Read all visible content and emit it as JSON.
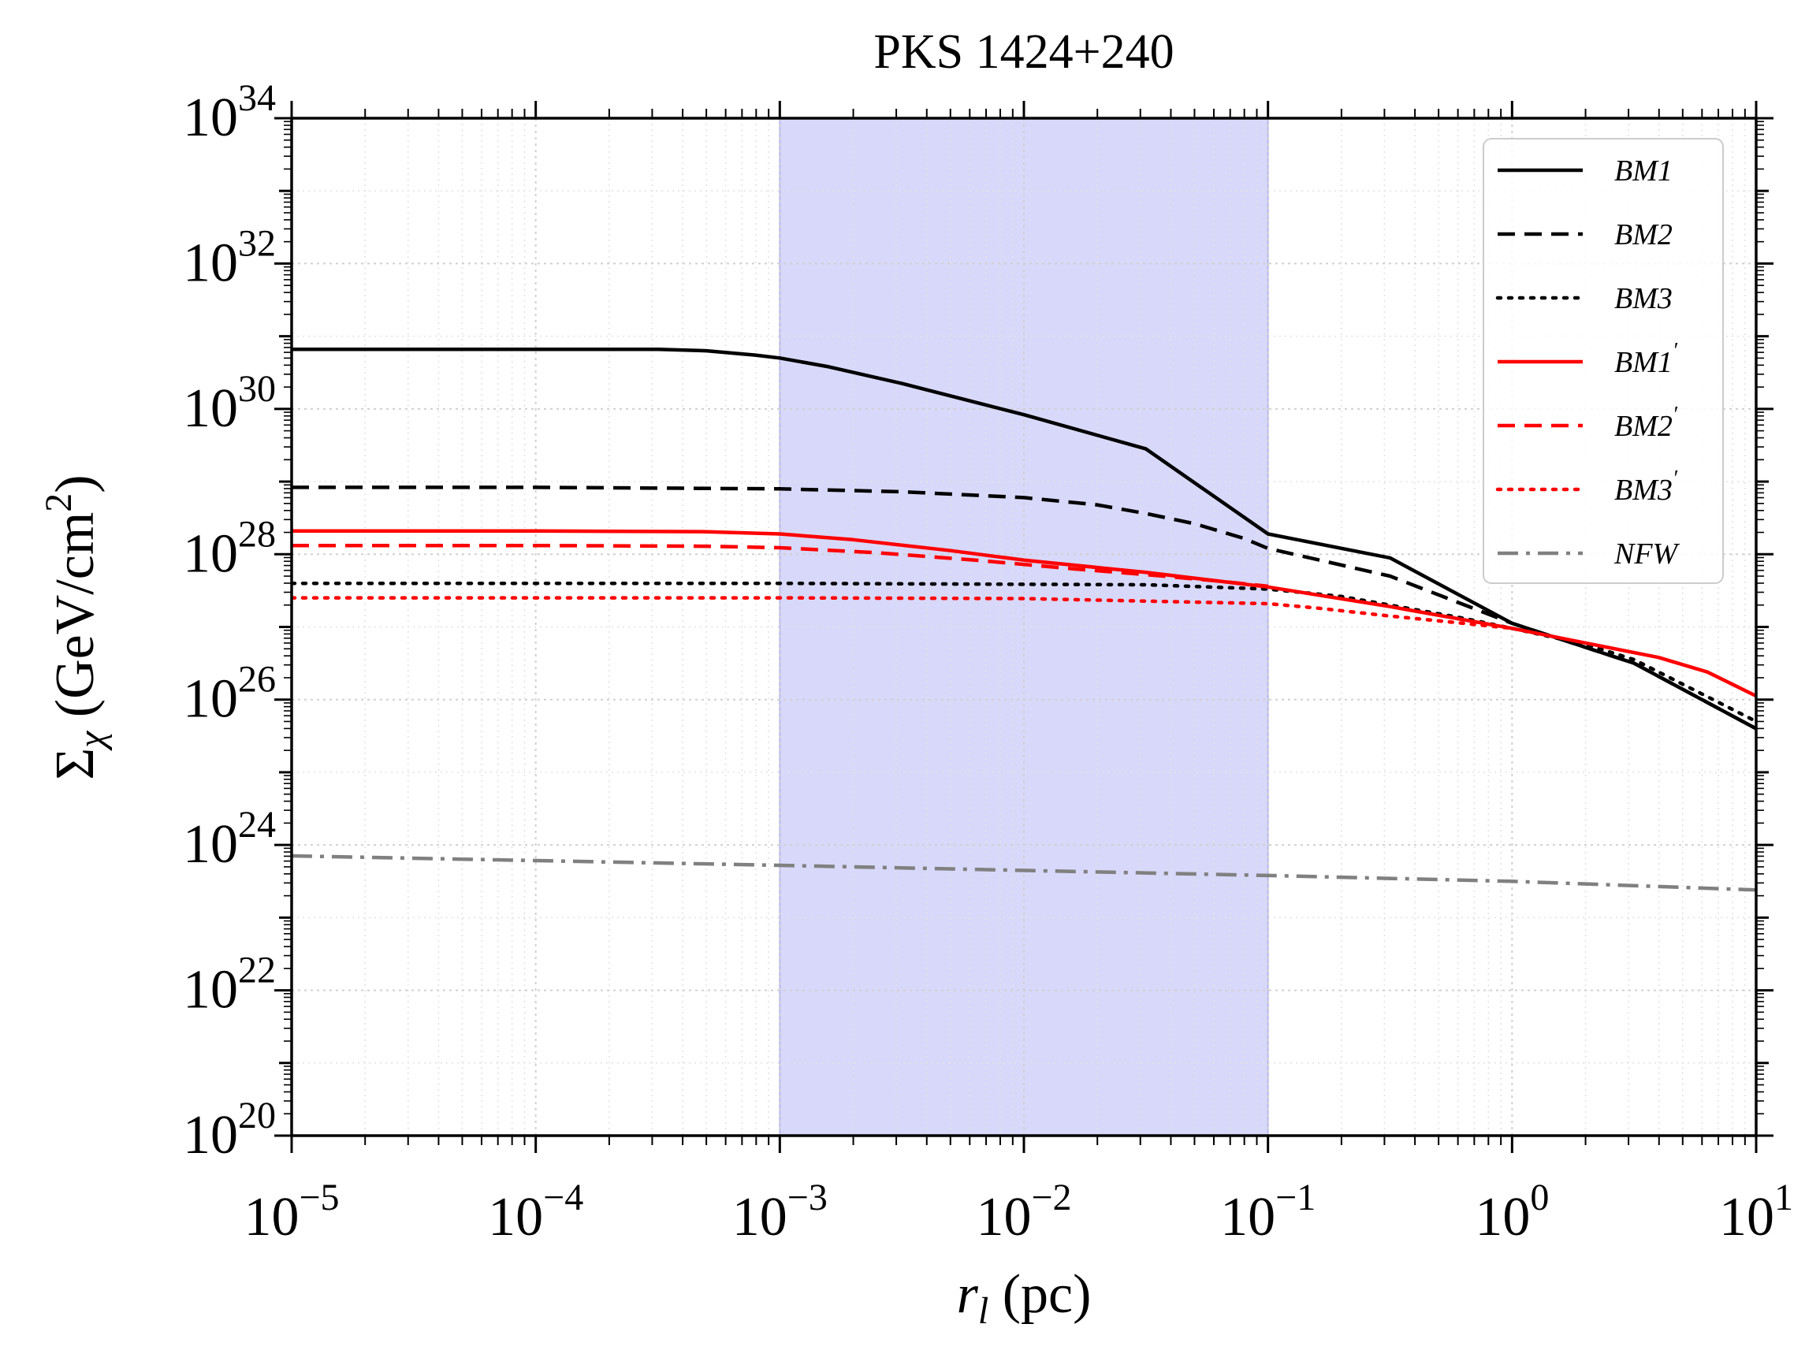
{
  "chart_data": {
    "type": "line",
    "title": "PKS 1424+240",
    "xlabel": "r_l (pc)",
    "ylabel": "Σ_χ (GeV/cm²)",
    "xscale": "log",
    "yscale": "log",
    "xlim_exp": [
      -5,
      1
    ],
    "ylim_exp": [
      20,
      34
    ],
    "x_tick_labels": [
      {
        "base": "10",
        "exp": "−5"
      },
      {
        "base": "10",
        "exp": "−4"
      },
      {
        "base": "10",
        "exp": "−3"
      },
      {
        "base": "10",
        "exp": "−2"
      },
      {
        "base": "10",
        "exp": "−1"
      },
      {
        "base": "10",
        "exp": "0"
      },
      {
        "base": "10",
        "exp": "1"
      }
    ],
    "y_tick_labels": [
      {
        "base": "10",
        "exp": "20"
      },
      {
        "base": "10",
        "exp": "22"
      },
      {
        "base": "10",
        "exp": "24"
      },
      {
        "base": "10",
        "exp": "26"
      },
      {
        "base": "10",
        "exp": "28"
      },
      {
        "base": "10",
        "exp": "30"
      },
      {
        "base": "10",
        "exp": "32"
      },
      {
        "base": "10",
        "exp": "34"
      }
    ],
    "shaded_region_x_exp": [
      -3,
      -1
    ],
    "legend_position": "top-right",
    "grid": true,
    "series": [
      {
        "name": "BM1",
        "legend_text": "BM1",
        "prime": false,
        "color": "#000000",
        "style": "solid",
        "x_log10": [
          -5,
          -4,
          -3.5,
          -3.3,
          -3.1,
          -3.0,
          -2.8,
          -2.5,
          -2.0,
          -1.5,
          -1.0,
          -0.5,
          0.0,
          0.5,
          1.0
        ],
        "y_log10": [
          30.82,
          30.82,
          30.82,
          30.8,
          30.74,
          30.7,
          30.58,
          30.35,
          29.92,
          29.45,
          28.28,
          27.95,
          27.05,
          26.5,
          25.6
        ]
      },
      {
        "name": "BM2",
        "legend_text": "BM2",
        "prime": false,
        "color": "#000000",
        "style": "dashed",
        "x_log10": [
          -5,
          -4,
          -3,
          -2.5,
          -2.0,
          -1.7,
          -1.5,
          -1.3,
          -1.1,
          -1.0,
          -0.5,
          0.0,
          0.5,
          1.0
        ],
        "y_log10": [
          28.92,
          28.92,
          28.9,
          28.86,
          28.78,
          28.68,
          28.56,
          28.42,
          28.22,
          28.08,
          27.7,
          27.05,
          26.5,
          25.6
        ]
      },
      {
        "name": "BM3",
        "legend_text": "BM3",
        "prime": false,
        "color": "#000000",
        "style": "dotted",
        "x_log10": [
          -5,
          -3,
          -1.5,
          -1.0,
          -0.7,
          -0.5,
          -0.2,
          0.0,
          0.3,
          0.5,
          1.0
        ],
        "y_log10": [
          27.6,
          27.6,
          27.58,
          27.52,
          27.42,
          27.3,
          27.12,
          26.98,
          26.76,
          26.55,
          25.7
        ]
      },
      {
        "name": "BM1'",
        "legend_text": "BM1",
        "prime": true,
        "color": "#ff0000",
        "style": "solid",
        "x_log10": [
          -5,
          -4,
          -3.3,
          -3.0,
          -2.7,
          -2.3,
          -2.0,
          -1.5,
          -1.0,
          -0.5,
          0.0,
          0.3,
          0.6,
          0.8,
          1.0
        ],
        "y_log10": [
          28.32,
          28.32,
          28.31,
          28.28,
          28.2,
          28.05,
          27.92,
          27.75,
          27.55,
          27.28,
          26.98,
          26.78,
          26.58,
          26.38,
          26.05
        ]
      },
      {
        "name": "BM2'",
        "legend_text": "BM2",
        "prime": true,
        "color": "#ff0000",
        "style": "dashed",
        "x_log10": [
          -5,
          -4,
          -3.3,
          -3.0,
          -2.6,
          -2.2,
          -1.8,
          -1.5,
          -1.2,
          -1.0
        ],
        "y_log10": [
          28.12,
          28.12,
          28.11,
          28.09,
          28.02,
          27.92,
          27.8,
          27.72,
          27.63,
          27.56
        ]
      },
      {
        "name": "BM3'",
        "legend_text": "BM3",
        "prime": true,
        "color": "#ff0000",
        "style": "dotted",
        "x_log10": [
          -5,
          -3,
          -2,
          -1.0,
          -0.8,
          -0.5,
          -0.2,
          0.0
        ],
        "y_log10": [
          27.4,
          27.4,
          27.39,
          27.32,
          27.26,
          27.15,
          27.05,
          26.98
        ]
      },
      {
        "name": "NFW",
        "legend_text": "NFW",
        "prime": false,
        "color": "#808080",
        "style": "dashdot",
        "x_log10": [
          -5,
          -3,
          -1,
          0,
          1
        ],
        "y_log10": [
          23.85,
          23.72,
          23.58,
          23.5,
          23.38
        ]
      }
    ]
  }
}
